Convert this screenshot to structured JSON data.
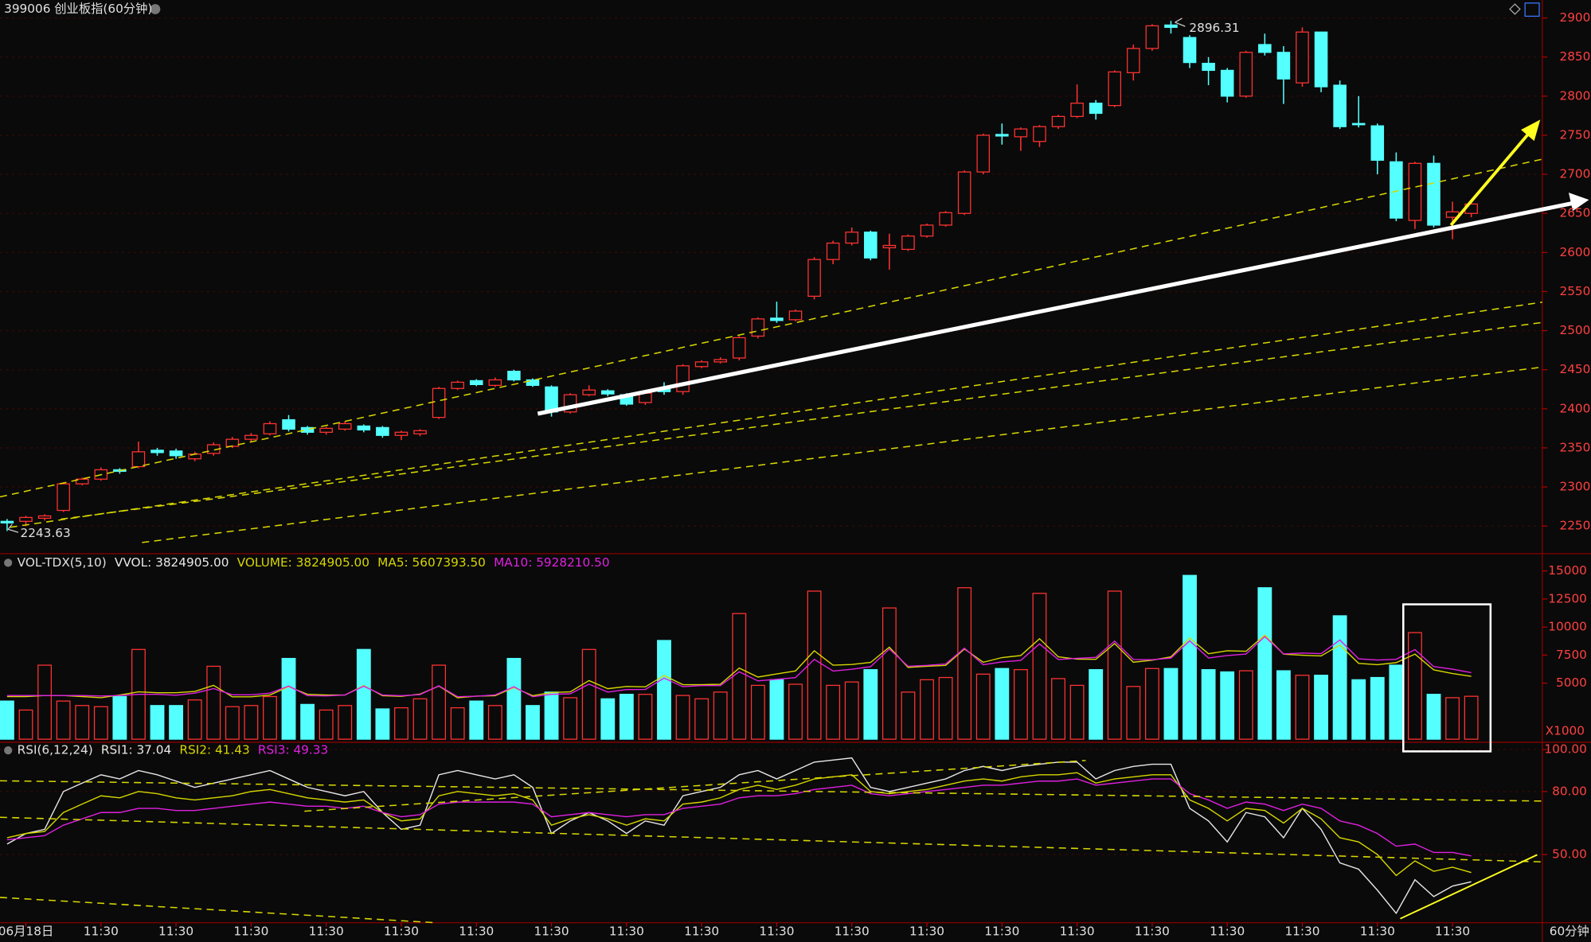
{
  "chart_data": [
    {
      "type": "candlestick",
      "title": "399006 创业板指(60分钟)",
      "categories": [
        null,
        "06月18日",
        null,
        null,
        null,
        "11:30",
        null,
        null,
        null,
        "11:30",
        null,
        null,
        null,
        "11:30",
        null,
        null,
        null,
        "11:30",
        null,
        null,
        null,
        "11:30",
        null,
        null,
        null,
        "11:30",
        null,
        null,
        null,
        "11:30",
        null,
        null,
        null,
        "11:30",
        null,
        null,
        null,
        "11:30",
        null,
        null,
        null,
        "11:30",
        null,
        null,
        null,
        "11:30",
        null,
        null,
        null,
        "11:30",
        null,
        null,
        null,
        "11:30",
        null,
        null,
        null,
        "11:30",
        null,
        null,
        null,
        "11:30",
        null,
        null,
        null,
        "11:30",
        null,
        null,
        null,
        "11:30",
        null,
        null,
        null,
        "11:30",
        null,
        null,
        null,
        "11:30",
        null
      ],
      "corner_label": "60分钟",
      "open": [
        2256,
        2256,
        2260,
        2270,
        2304,
        2310,
        2322,
        2326,
        2347,
        2346,
        2336,
        2343,
        2352,
        2361,
        2368,
        2386,
        2376,
        2370,
        2374,
        2378,
        2376,
        2366,
        2368,
        2389,
        2426,
        2436,
        2430,
        2448,
        2437,
        2428,
        2396,
        2418,
        2423,
        2418,
        2408,
        2425,
        2422,
        2454,
        2460,
        2465,
        2493,
        2516,
        2514,
        2544,
        2591,
        2612,
        2626,
        2606,
        2604,
        2621,
        2635,
        2650,
        2703,
        2751,
        2748,
        2742,
        2761,
        2774,
        2791,
        2788,
        2830,
        2861,
        2891,
        2875,
        2842,
        2833,
        2800,
        2866,
        2856,
        2817,
        2882,
        2814,
        2765,
        2762,
        2716,
        2641,
        2714,
        2645,
        2650
      ],
      "high": [
        2259,
        2263,
        2265,
        2306,
        2312,
        2325,
        2324,
        2358,
        2350,
        2349,
        2345,
        2357,
        2364,
        2369,
        2384,
        2392,
        2378,
        2377,
        2384,
        2380,
        2378,
        2372,
        2374,
        2428,
        2436,
        2438,
        2440,
        2450,
        2439,
        2430,
        2420,
        2430,
        2425,
        2420,
        2422,
        2434,
        2457,
        2462,
        2466,
        2493,
        2517,
        2537,
        2527,
        2594,
        2615,
        2632,
        2628,
        2624,
        2623,
        2637,
        2653,
        2705,
        2752,
        2765,
        2760,
        2763,
        2776,
        2815,
        2795,
        2833,
        2866,
        2892,
        2896.31,
        2878,
        2850,
        2836,
        2858,
        2880,
        2864,
        2888,
        2882,
        2820,
        2800,
        2765,
        2728,
        2716,
        2724,
        2665,
        2664
      ],
      "low": [
        2243.63,
        2250,
        2257,
        2268,
        2302,
        2308,
        2317,
        2324,
        2340,
        2336,
        2333,
        2340,
        2350,
        2358,
        2366,
        2371,
        2367,
        2367,
        2372,
        2370,
        2363,
        2360,
        2365,
        2387,
        2424,
        2429,
        2428,
        2435,
        2428,
        2390,
        2394,
        2416,
        2416,
        2404,
        2405,
        2418,
        2418,
        2452,
        2458,
        2462,
        2490,
        2510,
        2512,
        2540,
        2585,
        2609,
        2590,
        2578,
        2602,
        2619,
        2633,
        2648,
        2700,
        2738,
        2730,
        2735,
        2758,
        2772,
        2770,
        2786,
        2820,
        2858,
        2880,
        2836,
        2814,
        2792,
        2798,
        2852,
        2790,
        2812,
        2805,
        2758,
        2760,
        2700,
        2640,
        2630,
        2632,
        2617,
        2645
      ],
      "close": [
        2254,
        2261,
        2263,
        2304,
        2310,
        2322,
        2320,
        2345,
        2344,
        2340,
        2342,
        2354,
        2361,
        2366,
        2381,
        2374,
        2370,
        2375,
        2381,
        2373,
        2366,
        2370,
        2372,
        2426,
        2434,
        2431,
        2437,
        2437,
        2430,
        2396,
        2418,
        2424,
        2419,
        2406,
        2420,
        2422,
        2455,
        2460,
        2463,
        2491,
        2515,
        2513,
        2525,
        2591,
        2612,
        2626,
        2593,
        2609,
        2621,
        2635,
        2651,
        2703,
        2750,
        2749,
        2758,
        2761,
        2774,
        2791,
        2778,
        2831,
        2861,
        2890,
        2888,
        2843,
        2833,
        2800,
        2856,
        2856,
        2822,
        2882,
        2812,
        2761,
        2764,
        2718,
        2644,
        2714,
        2635,
        2652,
        2662
      ],
      "up_color": "#ff3232",
      "down_color": "#54ffff",
      "ylim": [
        2216,
        2923
      ],
      "yticks": [
        2250,
        2300,
        2350,
        2400,
        2450,
        2500,
        2550,
        2600,
        2650,
        2700,
        2750,
        2800,
        2850,
        2900
      ],
      "grid": true
    },
    {
      "type": "bar",
      "title": "VOL-TDX(5,10)",
      "readouts": [
        {
          "text": "VVOL: 3824905.00",
          "color": "#e8e8e8"
        },
        {
          "text": "VOLUME: 3824905.00",
          "color": "#d6d600"
        },
        {
          "text": "MA5: 5607393.50",
          "color": "#d6d600"
        },
        {
          "text": "MA10: 5928210.50",
          "color": "#e020e0"
        }
      ],
      "unit": "X1000",
      "values": [
        3400,
        2600,
        6600,
        3400,
        3000,
        2900,
        3800,
        8000,
        3000,
        3000,
        3500,
        6500,
        2900,
        3000,
        3800,
        7200,
        3100,
        2600,
        3000,
        8000,
        2700,
        2800,
        3600,
        6600,
        2800,
        3400,
        3000,
        7200,
        3000,
        4200,
        3700,
        8000,
        3600,
        4000,
        4000,
        8800,
        3900,
        3600,
        4200,
        11200,
        4800,
        5300,
        4900,
        13200,
        4800,
        5100,
        6200,
        11700,
        4200,
        5300,
        5500,
        13500,
        5800,
        6300,
        6200,
        13000,
        5400,
        4800,
        6200,
        13200,
        4700,
        6300,
        6300,
        14600,
        6200,
        6000,
        6100,
        13500,
        6100,
        5700,
        5700,
        11000,
        5300,
        5500,
        6600,
        9500,
        4000,
        3700,
        3824.905
      ],
      "series": [
        {
          "color": "#d6d600",
          "values": [
            3800,
            3800,
            3900,
            3900,
            3800,
            3700,
            3940,
            4220,
            4140,
            4140,
            4260,
            4800,
            3780,
            3780,
            3940,
            4680,
            4000,
            3940,
            3940,
            4780,
            3880,
            3820,
            4020,
            4740,
            3700,
            3840,
            3880,
            4600,
            3880,
            4160,
            4220,
            5220,
            4500,
            4700,
            4660,
            5680,
            4860,
            4860,
            4900,
            6340,
            5540,
            5820,
            6080,
            7880,
            6600,
            6660,
            6840,
            8200,
            6400,
            6500,
            6580,
            8040,
            6860,
            7280,
            7460,
            8960,
            7340,
            7140,
            7120,
            8520,
            6860,
            7040,
            7340,
            9020,
            7620,
            7880,
            7840,
            9280,
            7580,
            7480,
            7420,
            8400,
            6760,
            6640,
            6820,
            7580,
            6180,
            5860,
            5607.3935
          ]
        },
        {
          "color": "#e020e0",
          "values": [
            3900,
            3900,
            3900,
            3900,
            3900,
            3850,
            3900,
            4000,
            4000,
            3920,
            4100,
            4510,
            3960,
            3960,
            4100,
            4740,
            3890,
            3860,
            3940,
            4730,
            3940,
            3880,
            3980,
            4760,
            3790,
            3830,
            3950,
            4670,
            3790,
            4000,
            4050,
            4910,
            4190,
            4430,
            4440,
            5450,
            4680,
            4780,
            4780,
            6010,
            5200,
            5340,
            5490,
            7110,
            6070,
            6240,
            6460,
            8040,
            6500,
            6580,
            6710,
            8120,
            6630,
            6890,
            7020,
            8500,
            7100,
            7210,
            7290,
            8740,
            7100,
            7090,
            7230,
            8770,
            7240,
            7460,
            7590,
            9150,
            7600,
            7680,
            7630,
            8840,
            7170,
            7060,
            7120,
            7990,
            6470,
            6250,
            5928.2105
          ]
        }
      ],
      "ylim": [
        0,
        16450
      ],
      "yticks": [
        5000,
        7500,
        10000,
        12500,
        15000
      ]
    },
    {
      "type": "line",
      "title": "RSI(6,12,24)",
      "readouts": [
        {
          "text": "RSI1: 37.04",
          "color": "#e8e8e8"
        },
        {
          "text": "RSI2: 41.43",
          "color": "#d6d600"
        },
        {
          "text": "RSI3: 49.33",
          "color": "#e020e0"
        }
      ],
      "series": [
        {
          "color": "#e8e8e8",
          "values": [
            55,
            60,
            62,
            80,
            84,
            88,
            86,
            90,
            88,
            85,
            82,
            84,
            86,
            88,
            90,
            86,
            82,
            80,
            78,
            80,
            70,
            62,
            64,
            88,
            90,
            88,
            86,
            88,
            82,
            60,
            66,
            70,
            66,
            60,
            66,
            64,
            78,
            80,
            82,
            88,
            90,
            86,
            90,
            94,
            95,
            96,
            82,
            80,
            82,
            84,
            86,
            90,
            92,
            90,
            92,
            93,
            94,
            94,
            86,
            90,
            92,
            93,
            93,
            72,
            66,
            56,
            70,
            68,
            58,
            72,
            62,
            46,
            43,
            33,
            22,
            38,
            30,
            35,
            37.04
          ]
        },
        {
          "color": "#d6d600",
          "values": [
            58,
            60,
            61,
            70,
            74,
            78,
            77,
            80,
            79,
            77,
            76,
            77,
            78,
            80,
            81,
            79,
            77,
            76,
            75,
            76,
            70,
            66,
            67,
            78,
            80,
            79,
            78,
            79,
            76,
            64,
            67,
            69,
            67,
            64,
            67,
            66,
            74,
            75,
            77,
            81,
            83,
            81,
            83,
            86,
            87,
            88,
            80,
            79,
            80,
            81,
            83,
            85,
            86,
            85,
            87,
            88,
            88,
            89,
            84,
            86,
            87,
            88,
            88,
            76,
            72,
            66,
            72,
            71,
            65,
            72,
            67,
            58,
            56,
            50,
            40,
            47,
            42,
            44,
            41.43
          ]
        },
        {
          "color": "#e020e0",
          "values": [
            57,
            58,
            59,
            64,
            67,
            70,
            70,
            72,
            72,
            71,
            71,
            72,
            73,
            74,
            75,
            74,
            73,
            73,
            72,
            73,
            70,
            68,
            69,
            74,
            75,
            75,
            75,
            75,
            74,
            68,
            69,
            70,
            69,
            68,
            69,
            69,
            72,
            73,
            74,
            77,
            78,
            78,
            79,
            81,
            82,
            83,
            79,
            78,
            79,
            80,
            81,
            82,
            83,
            83,
            84,
            85,
            85,
            86,
            83,
            84,
            85,
            86,
            86,
            79,
            76,
            72,
            75,
            74,
            71,
            74,
            72,
            66,
            64,
            60,
            54,
            55,
            51,
            51,
            49.33
          ]
        }
      ],
      "ylim": [
        18,
        103
      ],
      "yticks": [
        {
          "value": 50,
          "label": "50.00"
        },
        {
          "value": 80,
          "label": "80.00"
        },
        {
          "value": 100,
          "label": "100.00"
        }
      ]
    }
  ]
}
